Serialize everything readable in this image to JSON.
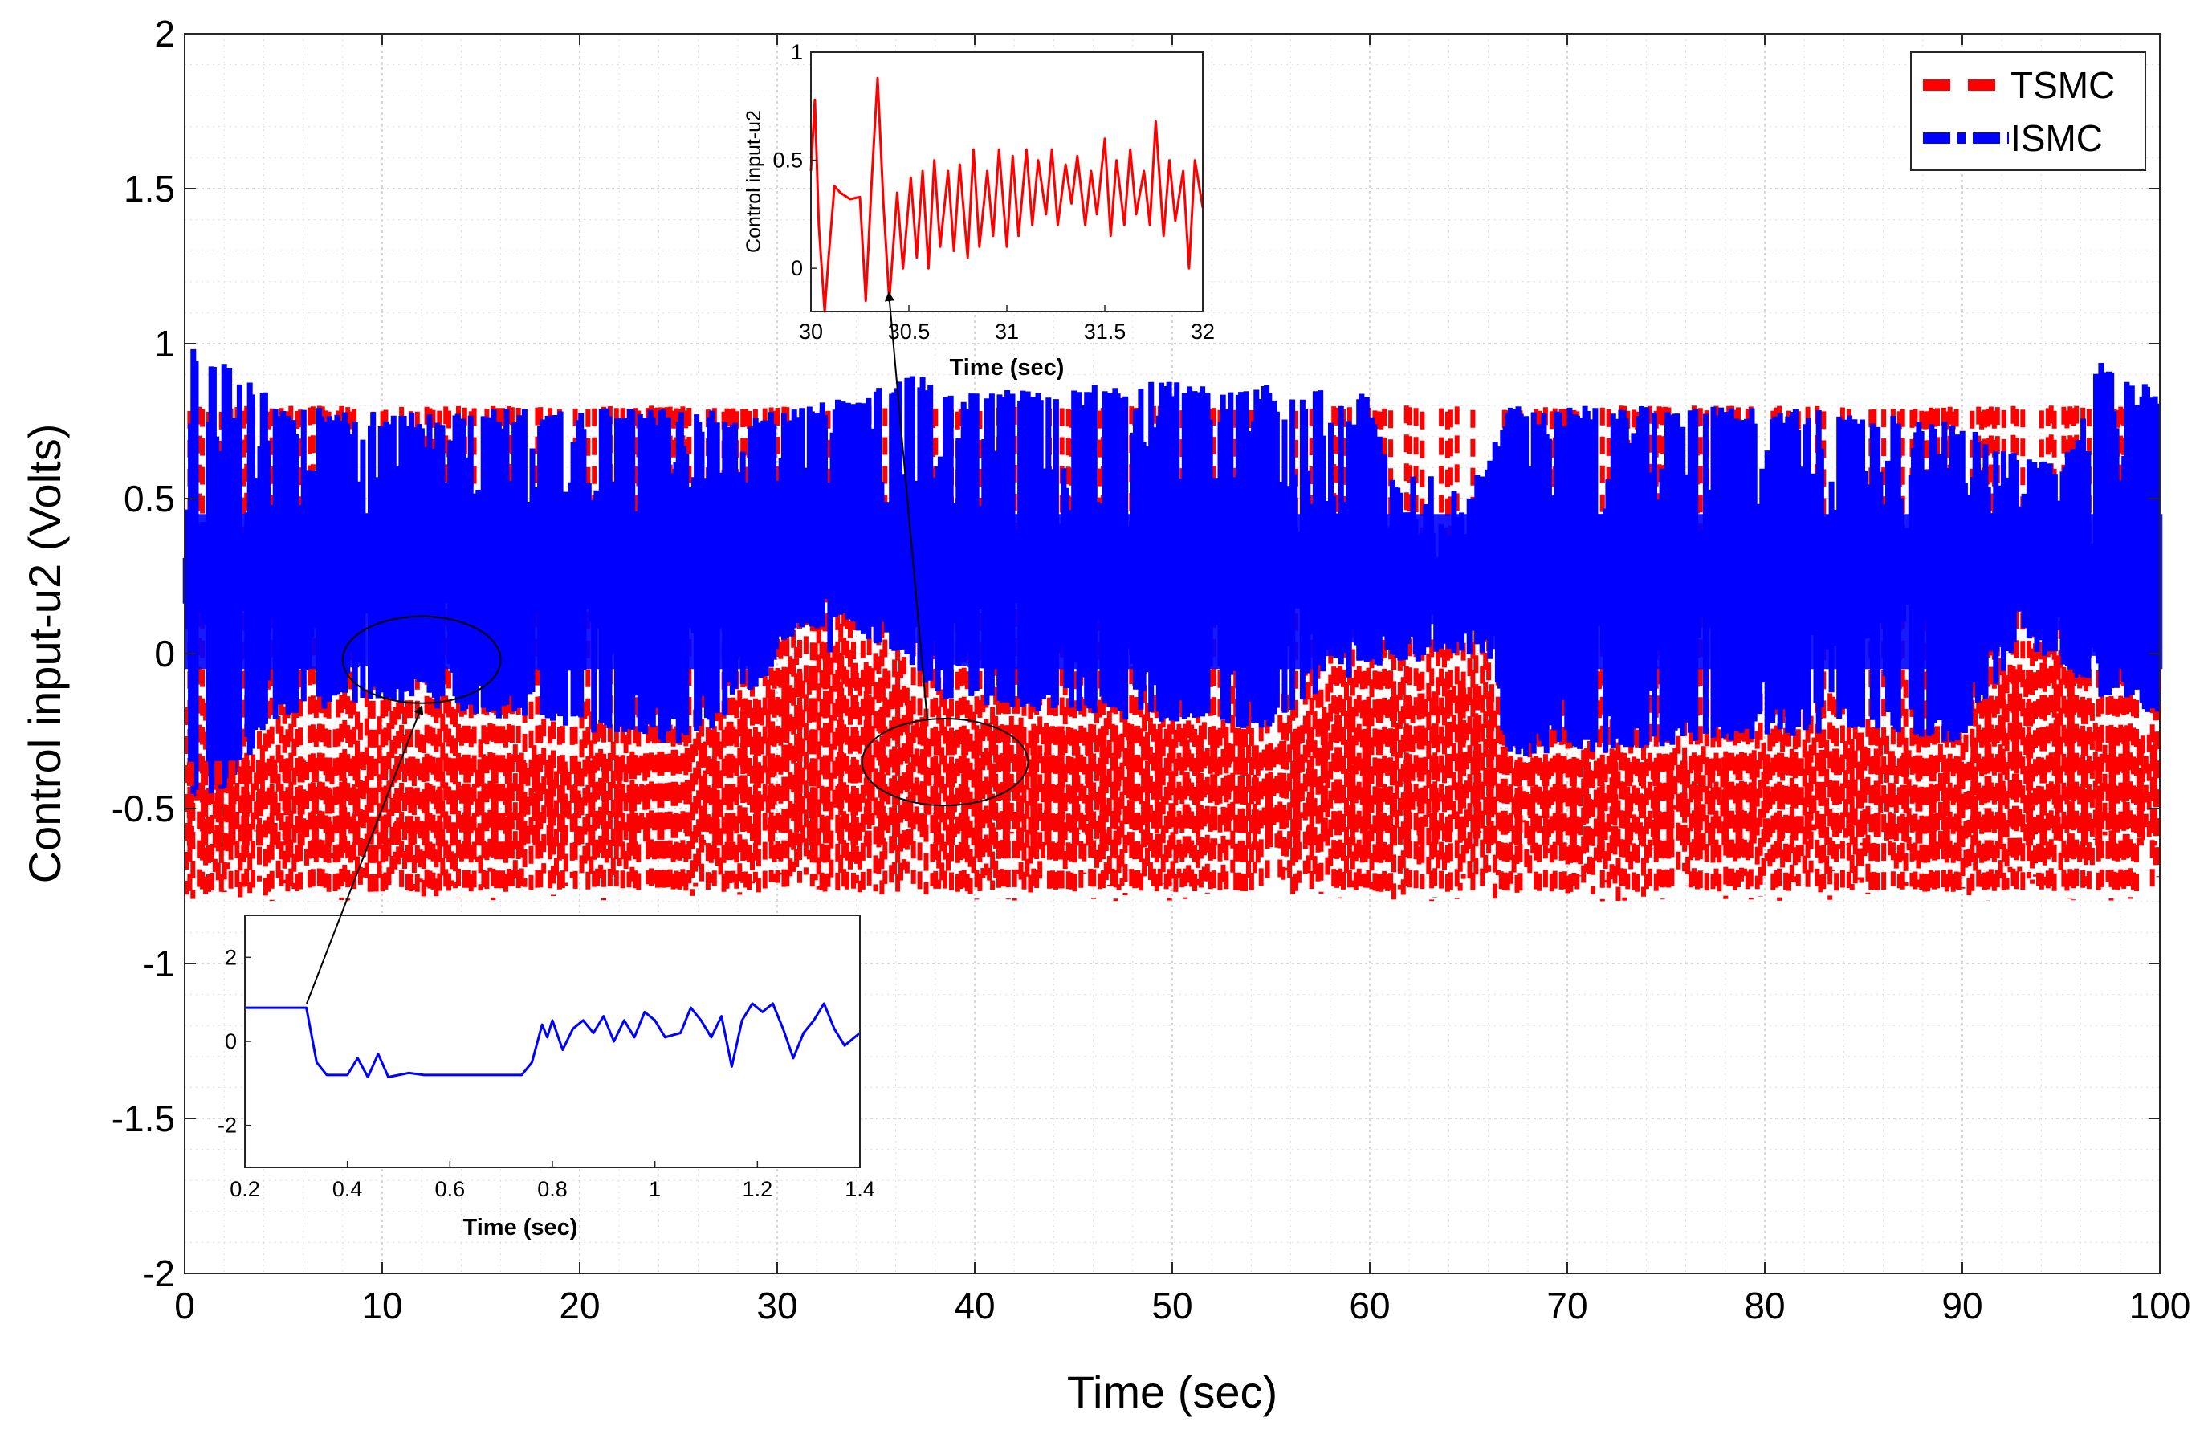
{
  "chart_data": [
    {
      "type": "line",
      "title": "",
      "xlabel": "Time (sec)",
      "ylabel": "Control input-u2 (Volts)",
      "xlim": [
        0,
        100
      ],
      "ylim": [
        -2,
        2
      ],
      "x_ticks": [
        0,
        10,
        20,
        30,
        40,
        50,
        60,
        70,
        80,
        90,
        100
      ],
      "y_ticks": [
        -2,
        -1.5,
        -1,
        -0.5,
        0,
        0.5,
        1,
        1.5,
        2
      ],
      "x_tick_labels": [
        "0",
        "10",
        "20",
        "30",
        "40",
        "50",
        "60",
        "70",
        "80",
        "90",
        "100"
      ],
      "y_tick_labels": [
        "-2",
        "-1.5",
        "-1",
        "-0.5",
        "0",
        "0.5",
        "1",
        "1.5",
        "2"
      ],
      "grid": true,
      "legend": {
        "location": "top-right",
        "entries": [
          {
            "name": "TSMC",
            "color": "#ff0000",
            "style": "dashed"
          },
          {
            "name": "ISMC",
            "color": "#0000ff",
            "style": "dash-dot"
          }
        ]
      },
      "series": [
        {
          "name": "TSMC",
          "color": "#ff0000",
          "description_of_envelope": "switching between about -0.8 and 0.8",
          "lower_envelope": [
            {
              "x": 0,
              "y": -0.8
            },
            {
              "x": 10,
              "y": -0.8
            },
            {
              "x": 20,
              "y": -0.8
            },
            {
              "x": 30,
              "y": -0.78
            },
            {
              "x": 40,
              "y": -0.8
            },
            {
              "x": 50,
              "y": -0.8
            },
            {
              "x": 60,
              "y": -0.8
            },
            {
              "x": 70,
              "y": -0.8
            },
            {
              "x": 80,
              "y": -0.8
            },
            {
              "x": 90,
              "y": -0.8
            },
            {
              "x": 100,
              "y": -0.8
            }
          ],
          "upper_envelope": [
            {
              "x": 0,
              "y": 0.8
            },
            {
              "x": 10,
              "y": 0.8
            },
            {
              "x": 20,
              "y": 0.8
            },
            {
              "x": 30,
              "y": 0.8
            },
            {
              "x": 40,
              "y": 0.8
            },
            {
              "x": 50,
              "y": 0.8
            },
            {
              "x": 60,
              "y": 0.8
            },
            {
              "x": 70,
              "y": 0.8
            },
            {
              "x": 80,
              "y": 0.8
            },
            {
              "x": 90,
              "y": 0.8
            },
            {
              "x": 100,
              "y": 0.8
            }
          ],
          "baseline_upper": [
            {
              "x": 0,
              "y": -0.3
            },
            {
              "x": 10,
              "y": -0.28
            },
            {
              "x": 20,
              "y": -0.3
            },
            {
              "x": 26,
              "y": -0.25
            },
            {
              "x": 30,
              "y": -0.05
            },
            {
              "x": 33,
              "y": 0.05
            },
            {
              "x": 36,
              "y": -0.05
            },
            {
              "x": 38,
              "y": -0.2
            },
            {
              "x": 45,
              "y": -0.2
            },
            {
              "x": 55,
              "y": -0.25
            },
            {
              "x": 60,
              "y": -0.1
            },
            {
              "x": 66,
              "y": -0.05
            },
            {
              "x": 67,
              "y": -0.3
            },
            {
              "x": 75,
              "y": -0.3
            },
            {
              "x": 85,
              "y": -0.25
            },
            {
              "x": 90,
              "y": -0.3
            },
            {
              "x": 92,
              "y": -0.05
            },
            {
              "x": 95,
              "y": 0.05
            },
            {
              "x": 97,
              "y": -0.2
            },
            {
              "x": 100,
              "y": -0.25
            }
          ]
        },
        {
          "name": "ISMC",
          "color": "#0000ff",
          "description_of_envelope": "band between about -0.35 and 0.85, switching around 0.2",
          "lower_envelope": [
            {
              "x": 0,
              "y": -0.5
            },
            {
              "x": 2,
              "y": -0.45
            },
            {
              "x": 5,
              "y": -0.2
            },
            {
              "x": 10,
              "y": -0.15
            },
            {
              "x": 15,
              "y": -0.2
            },
            {
              "x": 20,
              "y": -0.25
            },
            {
              "x": 25,
              "y": -0.3
            },
            {
              "x": 28,
              "y": -0.2
            },
            {
              "x": 31,
              "y": 0.05
            },
            {
              "x": 33,
              "y": 0.1
            },
            {
              "x": 36,
              "y": 0.0
            },
            {
              "x": 38,
              "y": -0.15
            },
            {
              "x": 45,
              "y": -0.2
            },
            {
              "x": 55,
              "y": -0.25
            },
            {
              "x": 60,
              "y": -0.05
            },
            {
              "x": 66,
              "y": 0.0
            },
            {
              "x": 67,
              "y": -0.35
            },
            {
              "x": 75,
              "y": -0.3
            },
            {
              "x": 85,
              "y": -0.25
            },
            {
              "x": 90,
              "y": -0.3
            },
            {
              "x": 93,
              "y": 0.05
            },
            {
              "x": 97,
              "y": -0.15
            },
            {
              "x": 100,
              "y": -0.2
            }
          ],
          "upper_envelope": [
            {
              "x": 0,
              "y": 1.0
            },
            {
              "x": 2,
              "y": 0.95
            },
            {
              "x": 5,
              "y": 0.8
            },
            {
              "x": 10,
              "y": 0.78
            },
            {
              "x": 20,
              "y": 0.8
            },
            {
              "x": 30,
              "y": 0.78
            },
            {
              "x": 37,
              "y": 0.9
            },
            {
              "x": 40,
              "y": 0.85
            },
            {
              "x": 50,
              "y": 0.88
            },
            {
              "x": 60,
              "y": 0.85
            },
            {
              "x": 61,
              "y": 0.6
            },
            {
              "x": 63,
              "y": 0.3
            },
            {
              "x": 65,
              "y": 0.5
            },
            {
              "x": 67,
              "y": 0.8
            },
            {
              "x": 80,
              "y": 0.8
            },
            {
              "x": 90,
              "y": 0.75
            },
            {
              "x": 95,
              "y": 0.6
            },
            {
              "x": 97,
              "y": 0.95
            },
            {
              "x": 100,
              "y": 0.85
            }
          ]
        }
      ],
      "annotations": [
        {
          "type": "ellipse",
          "center": {
            "x": 12,
            "y": -0.02
          },
          "radius_x": 4,
          "radius_y": 0.14
        },
        {
          "type": "ellipse",
          "center": {
            "x": 38.5,
            "y": -0.35
          },
          "radius_x": 4.2,
          "radius_y": 0.14
        }
      ]
    },
    {
      "type": "line",
      "role": "inset",
      "xlabel": "Time (sec)",
      "ylabel": "Control input-u2",
      "xlim": [
        30,
        32
      ],
      "ylim": [
        -0.2,
        1
      ],
      "x_ticks": [
        30,
        30.5,
        31,
        31.5,
        32
      ],
      "y_ticks": [
        0,
        0.5,
        1
      ],
      "x_tick_labels": [
        "30",
        "30.5",
        "31",
        "31.5",
        "32"
      ],
      "y_tick_labels": [
        "0",
        "0.5",
        "1"
      ],
      "grid": false,
      "series": [
        {
          "name": "TSMC",
          "color": "#ff0000",
          "x": [
            30.0,
            30.02,
            30.04,
            30.07,
            30.09,
            30.12,
            30.15,
            30.2,
            30.25,
            30.28,
            30.31,
            30.34,
            30.37,
            30.4,
            30.44,
            30.47,
            30.51,
            30.54,
            30.57,
            30.6,
            30.63,
            30.66,
            30.7,
            30.73,
            30.76,
            30.8,
            30.83,
            30.86,
            30.9,
            30.93,
            30.96,
            31.0,
            31.03,
            31.06,
            31.1,
            31.13,
            31.16,
            31.2,
            31.23,
            31.26,
            31.3,
            31.33,
            31.36,
            31.4,
            31.43,
            31.46,
            31.5,
            31.53,
            31.56,
            31.6,
            31.63,
            31.66,
            31.7,
            31.73,
            31.76,
            31.8,
            31.83,
            31.86,
            31.9,
            31.93,
            31.96,
            32.0
          ],
          "values": [
            0.45,
            0.78,
            0.2,
            -0.2,
            0.05,
            0.38,
            0.35,
            0.32,
            0.33,
            -0.15,
            0.4,
            0.88,
            0.3,
            -0.15,
            0.35,
            0.0,
            0.42,
            0.05,
            0.45,
            0.0,
            0.5,
            0.1,
            0.45,
            0.08,
            0.48,
            0.05,
            0.55,
            0.1,
            0.45,
            0.15,
            0.55,
            0.1,
            0.52,
            0.15,
            0.55,
            0.2,
            0.5,
            0.25,
            0.55,
            0.2,
            0.48,
            0.3,
            0.52,
            0.2,
            0.45,
            0.25,
            0.6,
            0.15,
            0.5,
            0.2,
            0.55,
            0.25,
            0.45,
            0.2,
            0.68,
            0.15,
            0.5,
            0.22,
            0.45,
            0.0,
            0.5,
            0.28
          ]
        }
      ]
    },
    {
      "type": "line",
      "role": "inset",
      "xlabel": "Time (sec)",
      "ylabel": "",
      "xlim": [
        0.2,
        1.4
      ],
      "ylim": [
        -3,
        3
      ],
      "x_ticks": [
        0.2,
        0.4,
        0.6,
        0.8,
        1,
        1.2,
        1.4
      ],
      "y_ticks": [
        -2,
        0,
        2
      ],
      "x_tick_labels": [
        "0.2",
        "0.4",
        "0.6",
        "0.8",
        "1",
        "1.2",
        "1.4"
      ],
      "y_tick_labels": [
        "-2",
        "0",
        "2"
      ],
      "grid": false,
      "series": [
        {
          "name": "ISMC",
          "color": "#0000ff",
          "x": [
            0.2,
            0.32,
            0.34,
            0.36,
            0.4,
            0.42,
            0.44,
            0.46,
            0.48,
            0.5,
            0.52,
            0.55,
            0.6,
            0.65,
            0.7,
            0.74,
            0.76,
            0.78,
            0.79,
            0.8,
            0.82,
            0.84,
            0.86,
            0.88,
            0.9,
            0.92,
            0.94,
            0.96,
            0.98,
            1.0,
            1.02,
            1.05,
            1.07,
            1.09,
            1.11,
            1.13,
            1.15,
            1.17,
            1.19,
            1.21,
            1.23,
            1.25,
            1.27,
            1.29,
            1.31,
            1.33,
            1.35,
            1.37,
            1.4
          ],
          "values": [
            0.8,
            0.8,
            -0.5,
            -0.8,
            -0.8,
            -0.4,
            -0.85,
            -0.3,
            -0.85,
            -0.8,
            -0.75,
            -0.8,
            -0.8,
            -0.8,
            -0.8,
            -0.8,
            -0.5,
            0.4,
            0.1,
            0.5,
            -0.2,
            0.3,
            0.5,
            0.2,
            0.6,
            0.0,
            0.5,
            0.1,
            0.7,
            0.5,
            0.1,
            0.2,
            0.8,
            0.5,
            0.1,
            0.6,
            -0.6,
            0.5,
            0.9,
            0.7,
            0.9,
            0.3,
            -0.4,
            0.2,
            0.5,
            0.9,
            0.3,
            -0.1,
            0.2
          ]
        }
      ]
    }
  ],
  "legend": {
    "tsmc_label": "TSMC",
    "ismc_label": "ISMC"
  },
  "colors": {
    "tsmc": "#ff0000",
    "ismc": "#0000ff"
  }
}
